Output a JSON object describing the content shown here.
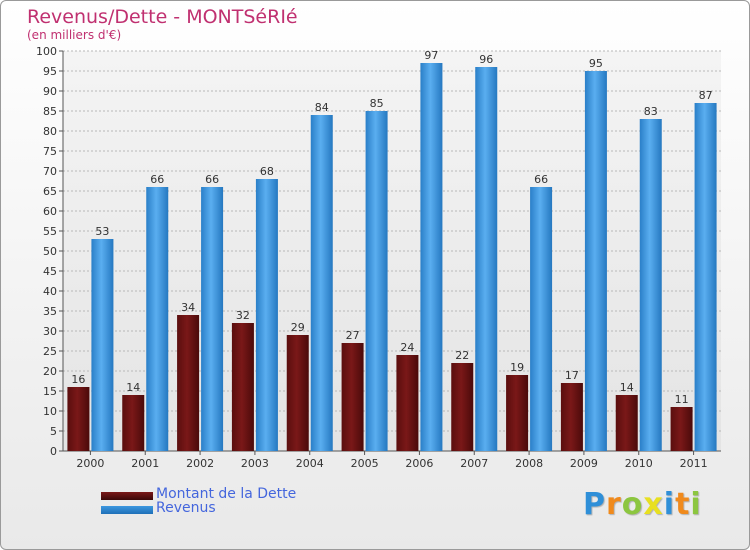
{
  "title": "Revenus/Dette - MONTSéRIé",
  "subtitle": "(en milliers d'€)",
  "colors": {
    "dette": "#7a1818",
    "revenus": "#3d98e0",
    "title": "#c03070",
    "legend_text": "#4466dd"
  },
  "chart_data": {
    "type": "bar",
    "title": "Revenus/Dette - MONTSéRIé",
    "ylabel": "(en milliers d'€)",
    "xlabel": "",
    "ylim": [
      0,
      100
    ],
    "y_tick_step": 5,
    "grid": true,
    "legend_position": "bottom-left",
    "categories": [
      "2000",
      "2001",
      "2002",
      "2003",
      "2004",
      "2005",
      "2006",
      "2007",
      "2008",
      "2009",
      "2010",
      "2011"
    ],
    "series": [
      {
        "name": "Montant de la Dette",
        "values": [
          16,
          14,
          34,
          32,
          29,
          27,
          24,
          22,
          19,
          17,
          14,
          11
        ]
      },
      {
        "name": "Revenus",
        "values": [
          53,
          66,
          66,
          68,
          84,
          85,
          97,
          96,
          66,
          95,
          83,
          87
        ]
      }
    ]
  },
  "legend": {
    "items": [
      {
        "label": "Montant de la Dette",
        "color": "#7a1818"
      },
      {
        "label": "Revenus",
        "color": "#3d98e0"
      }
    ]
  },
  "logo": {
    "letters": [
      "P",
      "r",
      "o",
      "x",
      "i",
      "t",
      "i"
    ],
    "colors": [
      "#2f8fd8",
      "#f08a1c",
      "#8cc63f",
      "#e8e020",
      "#2f8fd8",
      "#f08a1c",
      "#8cc63f"
    ]
  }
}
